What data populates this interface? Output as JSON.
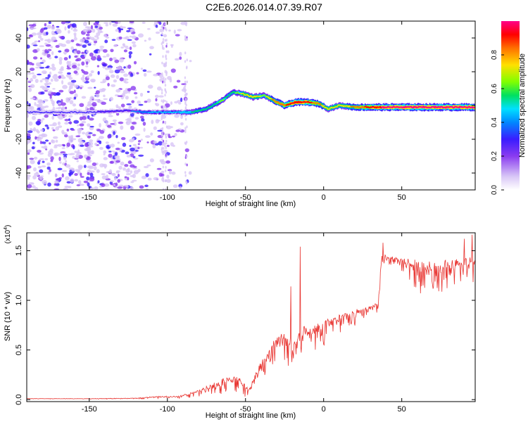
{
  "figure_title": "C2E6.2026.014.07.39.R07",
  "colors": {
    "snr_line": "#e8332f",
    "spectrum_colormap": [
      "#ffffff",
      "#d8c6f6",
      "#8a3cf0",
      "#3a1cff",
      "#0088ff",
      "#00e0ff",
      "#00e060",
      "#80ff00",
      "#ffe000",
      "#ff7000",
      "#ff0000",
      "#ff0088"
    ]
  },
  "chart_data": [
    {
      "type": "heatmap",
      "xlabel": "Height of straight line (km)",
      "ylabel": "Frequency (Hz)",
      "xlim": [
        -190,
        97
      ],
      "ylim": [
        -50,
        50
      ],
      "xticks": [
        -150,
        -100,
        -50,
        0,
        50
      ],
      "yticks": [
        -40,
        -20,
        0,
        20,
        40
      ],
      "xtick_labels": [
        "-150",
        "-100",
        "-50",
        "0",
        "50"
      ],
      "ytick_labels": [
        "-40",
        "-20",
        "0",
        "20",
        "40"
      ],
      "colorbar": {
        "label": "Normalized spectral amplitude",
        "range": [
          0.0,
          1.0
        ],
        "ticks": [
          0.0,
          0.2,
          0.4,
          0.6,
          0.8
        ],
        "tick_labels": [
          "0.0",
          "0.2",
          "0.4",
          "0.6",
          "0.8"
        ]
      },
      "ridge": {
        "x": [
          -190,
          -150,
          -125,
          -115,
          -100,
          -85,
          -75,
          -65,
          -58,
          -52,
          -45,
          -38,
          -32,
          -25,
          -18,
          -10,
          -3,
          3,
          10,
          20,
          35,
          60,
          97
        ],
        "y": [
          -4,
          -4,
          -3,
          -4,
          -4,
          -4,
          -2,
          3,
          8,
          7,
          5,
          6,
          3,
          0,
          2,
          2,
          1,
          -2,
          0,
          -1,
          -1,
          -1,
          -1
        ],
        "amplitude": [
          0.15,
          0.15,
          0.2,
          0.3,
          0.35,
          0.4,
          0.45,
          0.5,
          0.45,
          0.6,
          0.65,
          0.55,
          0.7,
          0.75,
          0.85,
          0.8,
          0.7,
          0.6,
          0.6,
          0.7,
          0.85,
          0.9,
          0.9
        ]
      },
      "noise_region_x": [
        -190,
        -85
      ]
    },
    {
      "type": "line",
      "xlabel": "Height of straight line (km)",
      "ylabel": "SNR (10 * v/v)",
      "y_multiplier_label": "(x10",
      "y_multiplier_exponent": "4",
      "xlim": [
        -190,
        97
      ],
      "ylim": [
        -0.02,
        1.68
      ],
      "xticks": [
        -150,
        -100,
        -50,
        0,
        50
      ],
      "yticks": [
        0.0,
        0.5,
        1.0,
        1.5
      ],
      "xtick_labels": [
        "-150",
        "-100",
        "-50",
        "0",
        "50"
      ],
      "ytick_labels": [
        "0.0",
        "0.5",
        "1.0",
        "1.5"
      ],
      "series": [
        {
          "envelope_x": [
            -190,
            -150,
            -120,
            -105,
            -95,
            -85,
            -75,
            -65,
            -55,
            -48,
            -42,
            -35,
            -28,
            -20,
            -12,
            -5,
            5,
            15,
            25,
            35,
            37,
            50,
            60,
            70,
            80,
            97
          ],
          "baseline": [
            0.01,
            0.01,
            0.015,
            0.03,
            0.03,
            0.06,
            0.12,
            0.18,
            0.22,
            0.08,
            0.3,
            0.45,
            0.65,
            0.55,
            0.7,
            0.7,
            0.8,
            0.85,
            0.9,
            0.95,
            1.45,
            1.4,
            1.35,
            1.3,
            1.35,
            1.4
          ],
          "amplitude": [
            0.005,
            0.005,
            0.01,
            0.03,
            0.02,
            0.05,
            0.08,
            0.15,
            0.15,
            0.1,
            0.2,
            0.2,
            0.25,
            0.3,
            0.3,
            0.25,
            0.2,
            0.15,
            0.12,
            0.1,
            0.15,
            0.15,
            0.3,
            0.35,
            0.25,
            0.25
          ],
          "peaks_x": [
            -15,
            -21,
            38,
            90,
            95
          ],
          "peaks_y": [
            1.54,
            1.14,
            1.58,
            1.62,
            1.66
          ]
        }
      ]
    }
  ]
}
